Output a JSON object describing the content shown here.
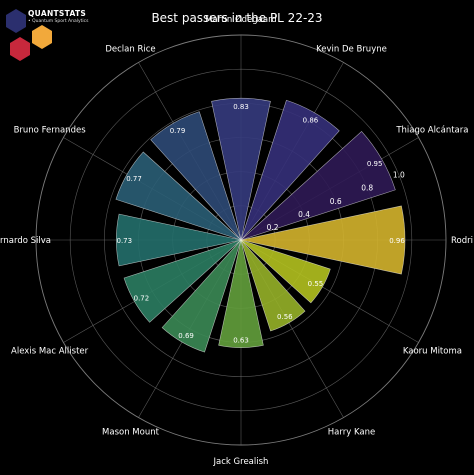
{
  "brand": {
    "name": "QUANTSTATS",
    "tagline": "• Quantum Sport Analytics"
  },
  "chart_data": {
    "type": "polar-bar",
    "title": "Best passers in the PL 22-23",
    "categories": [
      "Rodri",
      "Thiago Alcántara",
      "Kevin De Bruyne",
      "Martin Ødegaard",
      "Declan Rice",
      "Bruno Fernandes",
      "Bernardo Silva",
      "Alexis Mac Allister",
      "Mason Mount",
      "Jack Grealish",
      "Harry Kane",
      "Kaoru Mitoma"
    ],
    "values": [
      0.96,
      0.95,
      0.86,
      0.83,
      0.79,
      0.77,
      0.73,
      0.72,
      0.69,
      0.63,
      0.56,
      0.55
    ],
    "value_labels": [
      "0.96",
      "0.95",
      "0.86",
      "0.83",
      "0.79",
      "0.77",
      "0.73",
      "0.72",
      "0.69",
      "0.63",
      "0.56",
      "0.55"
    ],
    "colors": [
      "#d4b42c",
      "#2f1a55",
      "#35307a",
      "#353b7e",
      "#2e4a77",
      "#2a5e76",
      "#246f6b",
      "#2b7d62",
      "#3b8a55",
      "#63a03c",
      "#96b128",
      "#b2c11f"
    ],
    "radial_ticks": [
      "0.2",
      "0.4",
      "0.6",
      "0.8",
      "1.0"
    ],
    "rlim": [
      0,
      1.2
    ],
    "grid": true
  }
}
